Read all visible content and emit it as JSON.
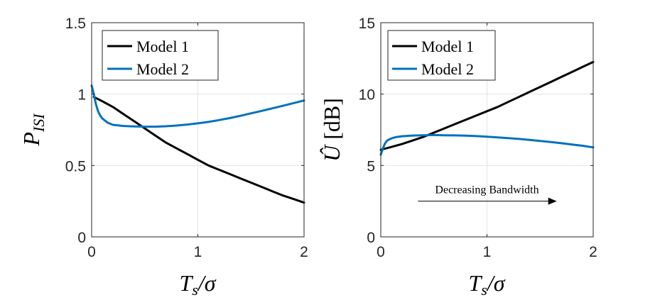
{
  "chart_data": [
    {
      "type": "line",
      "title": "",
      "xlabel": "T_s/σ",
      "ylabel": "P_ISI",
      "xlim": [
        0,
        2
      ],
      "ylim": [
        0,
        1.5
      ],
      "xticks": [
        0,
        1,
        2
      ],
      "xtick_labels": [
        "0",
        "1",
        "2"
      ],
      "yticks": [
        0,
        0.5,
        1,
        1.5
      ],
      "ytick_labels": [
        "0",
        "0.5",
        "1",
        "1.5"
      ],
      "grid": true,
      "legend": "top-left",
      "series": [
        {
          "name": "Model 1",
          "color": "#000000",
          "x": [
            0.02,
            0.1,
            0.2,
            0.3,
            0.4,
            0.5,
            0.6,
            0.7,
            0.8,
            0.9,
            1.0,
            1.1,
            1.2,
            1.3,
            1.4,
            1.5,
            1.6,
            1.7,
            1.8,
            1.9,
            2.0
          ],
          "y": [
            0.98,
            0.95,
            0.91,
            0.86,
            0.81,
            0.76,
            0.71,
            0.66,
            0.62,
            0.58,
            0.54,
            0.5,
            0.47,
            0.44,
            0.41,
            0.38,
            0.35,
            0.32,
            0.29,
            0.265,
            0.24
          ]
        },
        {
          "name": "Model 2",
          "color": "#0072BD",
          "x": [
            0.0,
            0.02,
            0.04,
            0.06,
            0.08,
            0.1,
            0.15,
            0.2,
            0.3,
            0.4,
            0.5,
            0.6,
            0.7,
            0.8,
            0.9,
            1.0,
            1.1,
            1.2,
            1.3,
            1.4,
            1.5,
            1.6,
            1.7,
            1.8,
            1.9,
            2.0
          ],
          "y": [
            1.06,
            1.0,
            0.93,
            0.88,
            0.85,
            0.83,
            0.8,
            0.785,
            0.777,
            0.774,
            0.772,
            0.772,
            0.775,
            0.78,
            0.787,
            0.795,
            0.805,
            0.818,
            0.832,
            0.848,
            0.865,
            0.882,
            0.9,
            0.918,
            0.937,
            0.955
          ]
        }
      ]
    },
    {
      "type": "line",
      "title": "",
      "xlabel": "T_s/σ",
      "ylabel": "Û [dB]",
      "xlim": [
        0,
        2
      ],
      "ylim": [
        0,
        15
      ],
      "xticks": [
        0,
        1,
        2
      ],
      "xtick_labels": [
        "0",
        "1",
        "2"
      ],
      "yticks": [
        0,
        5,
        10,
        15
      ],
      "ytick_labels": [
        "0",
        "5",
        "10",
        "15"
      ],
      "grid": true,
      "legend": "top-left",
      "annotation": {
        "text": "Decreasing Bandwidth",
        "x_from": 0.35,
        "x_to": 1.65,
        "y": 2.5
      },
      "series": [
        {
          "name": "Model 1",
          "color": "#000000",
          "x": [
            0.0,
            0.1,
            0.2,
            0.3,
            0.4,
            0.5,
            0.6,
            0.7,
            0.8,
            0.9,
            1.0,
            1.1,
            1.2,
            1.3,
            1.4,
            1.5,
            1.6,
            1.7,
            1.8,
            1.9,
            2.0
          ],
          "y": [
            6.1,
            6.3,
            6.5,
            6.75,
            7.0,
            7.3,
            7.6,
            7.9,
            8.2,
            8.5,
            8.8,
            9.1,
            9.45,
            9.8,
            10.15,
            10.5,
            10.85,
            11.2,
            11.55,
            11.9,
            12.25
          ]
        },
        {
          "name": "Model 2",
          "color": "#0072BD",
          "x": [
            0.0,
            0.02,
            0.04,
            0.06,
            0.1,
            0.15,
            0.2,
            0.3,
            0.4,
            0.5,
            0.6,
            0.7,
            0.8,
            0.9,
            1.0,
            1.1,
            1.2,
            1.3,
            1.4,
            1.5,
            1.6,
            1.7,
            1.8,
            1.9,
            2.0
          ],
          "y": [
            5.75,
            6.2,
            6.55,
            6.75,
            6.9,
            7.0,
            7.05,
            7.1,
            7.12,
            7.13,
            7.12,
            7.11,
            7.09,
            7.06,
            7.02,
            6.97,
            6.92,
            6.86,
            6.79,
            6.72,
            6.64,
            6.56,
            6.47,
            6.38,
            6.27
          ]
        }
      ]
    }
  ]
}
